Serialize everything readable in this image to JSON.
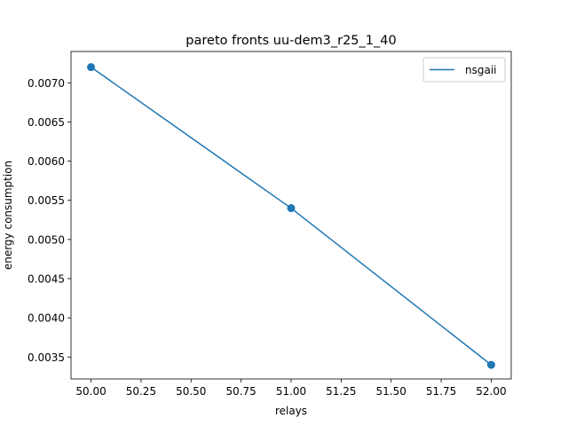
{
  "chart_data": {
    "type": "line",
    "title": "pareto fronts uu-dem3_r25_1_40",
    "xlabel": "relays",
    "ylabel": "energy consumption",
    "xlim": [
      49.9,
      52.1
    ],
    "ylim": [
      0.00322,
      0.0074
    ],
    "xticks": [
      50.0,
      50.25,
      50.5,
      50.75,
      51.0,
      51.25,
      51.5,
      51.75,
      52.0
    ],
    "xtick_labels": [
      "50.00",
      "50.25",
      "50.50",
      "50.75",
      "51.00",
      "51.25",
      "51.50",
      "51.75",
      "52.00"
    ],
    "yticks": [
      0.0035,
      0.004,
      0.0045,
      0.005,
      0.0055,
      0.006,
      0.0065,
      0.007
    ],
    "ytick_labels": [
      "0.0035",
      "0.0040",
      "0.0045",
      "0.0050",
      "0.0055",
      "0.0060",
      "0.0065",
      "0.0070"
    ],
    "grid": false,
    "legend_position": "upper-right",
    "series": [
      {
        "name": "nsgaii",
        "color": "#1f77b4",
        "marker": "circle",
        "points": [
          {
            "x": 50,
            "y": 0.0072
          },
          {
            "x": 51,
            "y": 0.0054
          },
          {
            "x": 52,
            "y": 0.0034
          }
        ]
      }
    ]
  }
}
